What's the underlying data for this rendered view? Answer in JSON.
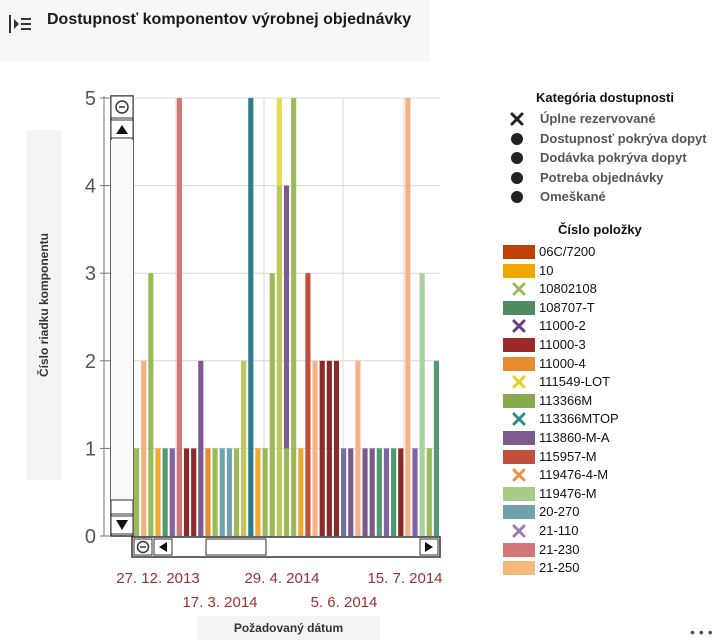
{
  "header": {
    "title": "Dostupnosť komponentov výrobnej objednávky",
    "menu_icon": "list-menu-icon"
  },
  "chart_data": {
    "type": "bar",
    "ylabel": "Číslo riadku komponentu",
    "xlabel": "Požadovaný dátum",
    "ylim": [
      0,
      5
    ],
    "yticks": [
      "0",
      "1",
      "2",
      "3",
      "4",
      "5"
    ],
    "xticks_row1": [
      "27. 12. 2013",
      "29. 4. 2014",
      "15. 7. 2014"
    ],
    "xticks_row2": [
      "17. 3. 2014",
      "5. 6. 2014"
    ],
    "grid": true,
    "bars": [
      {
        "v": 1,
        "c": "#9bbb59"
      },
      {
        "v": 2,
        "c": "#f4b183"
      },
      {
        "v": 3,
        "c": "#9bbb59"
      },
      {
        "v": 1,
        "c": "#f0a830"
      },
      {
        "v": 1,
        "c": "#4f9a70"
      },
      {
        "v": 1,
        "c": "#8064a2"
      },
      {
        "v": 5,
        "c": "#d07878"
      },
      {
        "v": 1,
        "c": "#8b2a2a"
      },
      {
        "v": 1,
        "c": "#8b2a2a"
      },
      {
        "v": 2,
        "c": "#7d5a8c"
      },
      {
        "v": 1,
        "c": "#e88c30"
      },
      {
        "v": 1,
        "c": "#9bbb59"
      },
      {
        "v": 1,
        "c": "#6fa2ac"
      },
      {
        "v": 1,
        "c": "#6fa2ac"
      },
      {
        "v": 1,
        "c": "#9bbb59"
      },
      {
        "v": 2,
        "c": "#bcc85a"
      },
      {
        "v": 5,
        "c": "#2d7d8a"
      },
      {
        "v": 1,
        "c": "#f0a830"
      },
      {
        "v": 1,
        "c": "#9bbb59"
      },
      {
        "v": 3,
        "c": "#9bbb59"
      },
      {
        "v": 5,
        "c": "#e6dc50",
        "segs": [
          {
            "v": 4,
            "c": "#bcc85a"
          },
          {
            "v": 1,
            "c": "#e6dc50"
          }
        ]
      },
      {
        "v": 4,
        "c": "#7d5a8c",
        "segs": [
          {
            "v": 1,
            "c": "#9bbb59"
          },
          {
            "v": 3,
            "c": "#7d5a8c"
          }
        ]
      },
      {
        "v": 5,
        "c": "#9bbb59"
      },
      {
        "v": 1,
        "c": "#f0a830"
      },
      {
        "v": 3,
        "c": "#c0503c"
      },
      {
        "v": 2,
        "c": "#f4b183"
      },
      {
        "v": 2,
        "c": "#8b2a2a"
      },
      {
        "v": 2,
        "c": "#8b2a2a"
      },
      {
        "v": 2,
        "c": "#8b2a2a"
      },
      {
        "v": 1,
        "c": "#6f6fa2"
      },
      {
        "v": 1,
        "c": "#7d5a8c"
      },
      {
        "v": 2,
        "c": "#f4b183"
      },
      {
        "v": 1,
        "c": "#7d5a8c"
      },
      {
        "v": 1,
        "c": "#7d5a8c"
      },
      {
        "v": 1,
        "c": "#4f9a70"
      },
      {
        "v": 1,
        "c": "#8064a2"
      },
      {
        "v": 1,
        "c": "#4f9a70"
      },
      {
        "v": 1,
        "c": "#8b2a2a"
      },
      {
        "v": 5,
        "c": "#f4b183"
      },
      {
        "v": 1,
        "c": "#8064a2"
      },
      {
        "v": 3,
        "c": "#a8d0a0"
      },
      {
        "v": 1,
        "c": "#9bbb59"
      },
      {
        "v": 2,
        "c": "#4f9a70"
      }
    ]
  },
  "legend_category": {
    "title": "Kategória dostupnosti",
    "items": [
      {
        "label": "Úplne rezervované",
        "shape": "x"
      },
      {
        "label": "Dostupnosť pokrýva dopyt",
        "shape": "dot"
      },
      {
        "label": "Dodávka pokrýva dopyt",
        "shape": "dot"
      },
      {
        "label": "Potreba objednávky",
        "shape": "dot"
      },
      {
        "label": "Omeškané",
        "shape": "dot"
      }
    ]
  },
  "legend_items": {
    "title": "Číslo položky",
    "items": [
      {
        "label": "06C/7200",
        "color": "#c0400a",
        "shape": "rect"
      },
      {
        "label": "10",
        "color": "#f0a800",
        "shape": "rect"
      },
      {
        "label": "10802108",
        "color": "#9bbb59",
        "shape": "x"
      },
      {
        "label": "108707-T",
        "color": "#4f8a60",
        "shape": "rect"
      },
      {
        "label": "11000-2",
        "color": "#6a3d7a",
        "shape": "x"
      },
      {
        "label": "11000-3",
        "color": "#9a2a28",
        "shape": "rect"
      },
      {
        "label": "11000-4",
        "color": "#e88c30",
        "shape": "rect"
      },
      {
        "label": "111549-LOT",
        "color": "#e6d020",
        "shape": "x"
      },
      {
        "label": "113366M",
        "color": "#8aaa50",
        "shape": "rect"
      },
      {
        "label": "113366MTOP",
        "color": "#2d8a8a",
        "shape": "x"
      },
      {
        "label": "113860-M-A",
        "color": "#7d5a8c",
        "shape": "rect"
      },
      {
        "label": "115957-M",
        "color": "#c0503c",
        "shape": "rect"
      },
      {
        "label": "119476-4-M",
        "color": "#f09040",
        "shape": "x"
      },
      {
        "label": "119476-M",
        "color": "#a8cc88",
        "shape": "rect"
      },
      {
        "label": "20-270",
        "color": "#6fa2ac",
        "shape": "rect"
      },
      {
        "label": "21-110",
        "color": "#9c7cb0",
        "shape": "x"
      },
      {
        "label": "21-230",
        "color": "#d07878",
        "shape": "rect"
      },
      {
        "label": "21-250",
        "color": "#f4b87a",
        "shape": "rect"
      }
    ]
  }
}
